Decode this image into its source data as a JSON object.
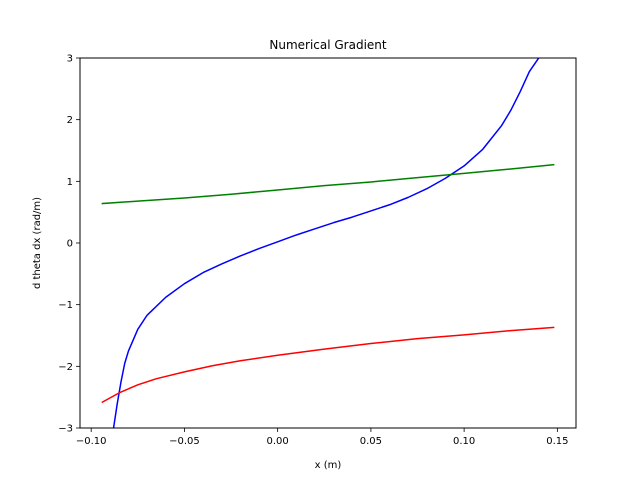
{
  "chart_data": {
    "type": "line",
    "title": "Numerical Gradient",
    "xlabel": "x (m)",
    "ylabel": "d theta dx (rad/m)",
    "xlim": [
      -0.106,
      0.16
    ],
    "ylim": [
      -3,
      3
    ],
    "x_ticks": [
      -0.1,
      -0.05,
      0.0,
      0.05,
      0.1,
      0.15
    ],
    "x_tick_labels": [
      "−0.10",
      "−0.05",
      "0.00",
      "0.05",
      "0.10",
      "0.15"
    ],
    "y_ticks": [
      -3,
      -2,
      -1,
      0,
      1,
      2,
      3
    ],
    "y_tick_labels": [
      "−3",
      "−2",
      "−1",
      "0",
      "1",
      "2",
      "3"
    ],
    "grid": false,
    "series": [
      {
        "color": "#0000ff",
        "x": [
          -0.088,
          -0.086,
          -0.084,
          -0.082,
          -0.08,
          -0.075,
          -0.07,
          -0.06,
          -0.05,
          -0.04,
          -0.03,
          -0.02,
          -0.01,
          0.0,
          0.01,
          0.02,
          0.03,
          0.04,
          0.05,
          0.06,
          0.07,
          0.08,
          0.09,
          0.1,
          0.11,
          0.12,
          0.125,
          0.13,
          0.135,
          0.14
        ],
        "y": [
          -3.0,
          -2.6,
          -2.25,
          -1.95,
          -1.75,
          -1.4,
          -1.17,
          -0.88,
          -0.66,
          -0.48,
          -0.34,
          -0.21,
          -0.09,
          0.02,
          0.13,
          0.23,
          0.33,
          0.42,
          0.52,
          0.62,
          0.74,
          0.88,
          1.05,
          1.25,
          1.52,
          1.9,
          2.15,
          2.45,
          2.78,
          3.0
        ]
      },
      {
        "color": "#008000",
        "x": [
          -0.094,
          -0.075,
          -0.05,
          -0.025,
          0.0,
          0.025,
          0.05,
          0.075,
          0.1,
          0.125,
          0.148
        ],
        "y": [
          0.64,
          0.68,
          0.73,
          0.79,
          0.86,
          0.93,
          0.99,
          1.06,
          1.13,
          1.2,
          1.27
        ]
      },
      {
        "color": "#ff0000",
        "x": [
          -0.094,
          -0.085,
          -0.075,
          -0.065,
          -0.05,
          -0.035,
          -0.02,
          0.0,
          0.025,
          0.05,
          0.075,
          0.1,
          0.125,
          0.148
        ],
        "y": [
          -2.58,
          -2.43,
          -2.3,
          -2.2,
          -2.09,
          -1.99,
          -1.91,
          -1.82,
          -1.72,
          -1.63,
          -1.55,
          -1.49,
          -1.42,
          -1.37
        ]
      }
    ]
  }
}
